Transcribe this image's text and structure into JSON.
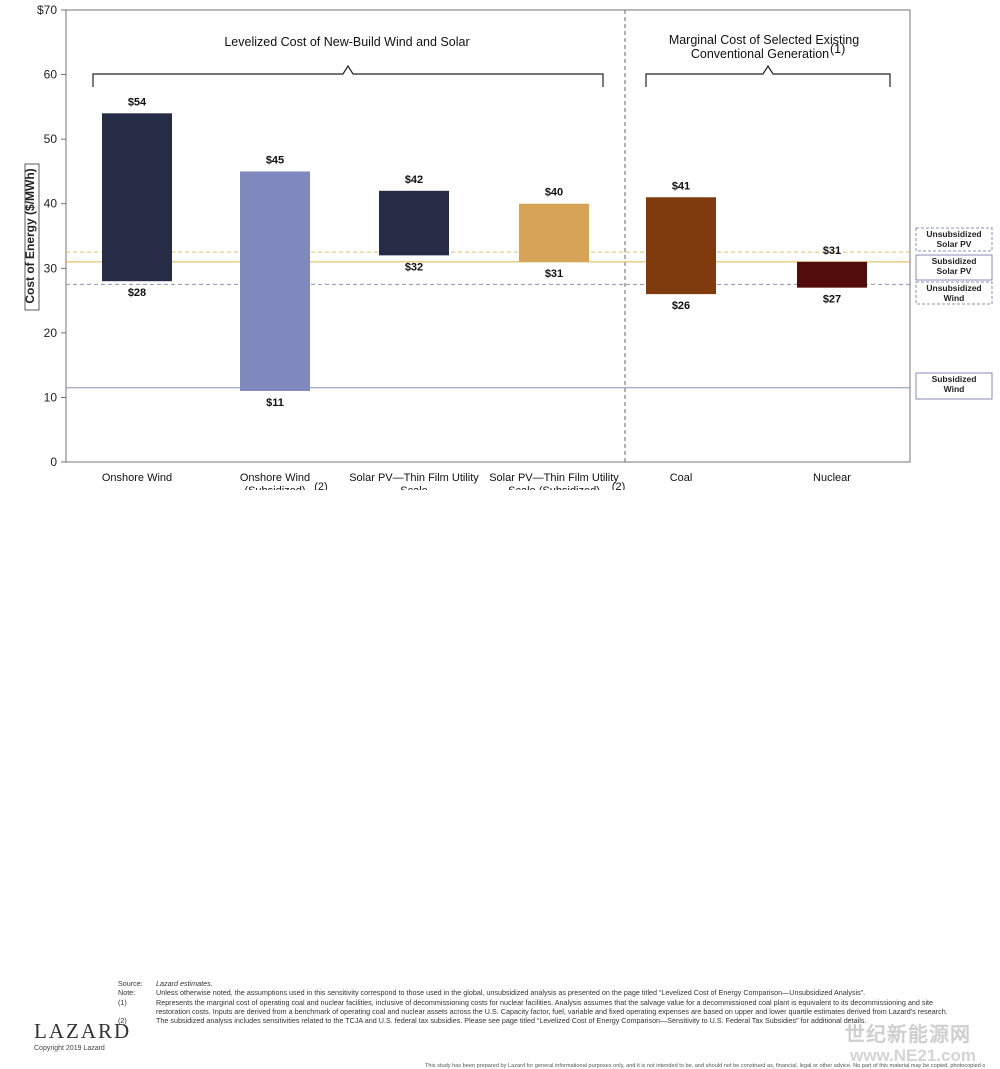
{
  "chart_data": {
    "type": "bar",
    "subtype": "floating-range",
    "ylabel": "Cost of Energy ($/MWh)",
    "ylim": [
      0,
      70
    ],
    "yticks": [
      "0",
      "10",
      "20",
      "30",
      "40",
      "50",
      "60",
      "$70"
    ],
    "grid": false,
    "categories": [
      "Onshore Wind",
      "Onshore Wind (Subsidized)",
      "Solar PV—Thin Film Utility Scale",
      "Solar PV—Thin Film Utility Scale (Subsidized)",
      "Coal",
      "Nuclear"
    ],
    "category_lines": [
      [
        "Onshore Wind"
      ],
      [
        "Onshore Wind",
        "(Subsidized)"
      ],
      [
        "Solar PV—Thin Film Utility",
        "Scale"
      ],
      [
        "Solar PV—Thin Film Utility",
        "Scale (Subsidized)"
      ],
      [
        "Coal"
      ],
      [
        "Nuclear"
      ]
    ],
    "category_sup": [
      "",
      "(2)",
      "",
      "(2)",
      "",
      ""
    ],
    "low": [
      28,
      11,
      32,
      31,
      26,
      27
    ],
    "high": [
      54,
      45,
      42,
      40,
      41,
      31
    ],
    "low_labels": [
      "$28",
      "$11",
      "$32",
      "$31",
      "$26",
      "$27"
    ],
    "high_labels": [
      "$54",
      "$45",
      "$42",
      "$40",
      "$41",
      "$31"
    ],
    "bar_colors": [
      "#262b46",
      "#7f89bd",
      "#262b46",
      "#d7a457",
      "#7f3b0e",
      "#520c0c"
    ],
    "groups": [
      {
        "title": "Levelized Cost of New-Build Wind and Solar",
        "from": 0,
        "to": 3
      },
      {
        "title_lines": [
          "Marginal Cost of Selected Existing",
          "Conventional Generation"
        ],
        "title_sup": "(1)",
        "from": 4,
        "to": 5
      }
    ],
    "reference_lines": [
      {
        "label": [
          "Unsubsidized",
          "Solar PV"
        ],
        "value": 32.5,
        "style": "dashed",
        "color": "#e0c16e"
      },
      {
        "label": [
          "Subsidized",
          "Solar PV"
        ],
        "value": 31,
        "style": "solid",
        "color": "#d7b64e"
      },
      {
        "label": [
          "Unsubsidized",
          "Wind"
        ],
        "value": 27.5,
        "style": "dashed",
        "color": "#8c92b8"
      },
      {
        "label": [
          "Subsidized",
          "Wind"
        ],
        "value": 11.5,
        "style": "solid",
        "color": "#8c92b8"
      }
    ]
  },
  "footer": {
    "source_key": "Source:",
    "source_text": "Lazard estimates.",
    "note_key": "Note:",
    "note_text": "Unless otherwise noted, the assumptions used in this sensitivity correspond to those used in the global, unsubsidized analysis as presented on the page titled “Levelized Cost of Energy Comparison—Unsubsidized Analysis”.",
    "fn1_key": "(1)",
    "fn1_text": "Represents the marginal cost of operating coal and nuclear facilities, inclusive of decommissioning costs for nuclear facilities. Analysis assumes that the salvage value for a decommissioned coal plant is equivalent to its decommissioning and site restoration costs. Inputs are derived from a benchmark of operating coal and nuclear assets across the U.S. Capacity factor, fuel, variable and fixed operating expenses are based on upper and lower quartile estimates derived from Lazard’s research.",
    "fn2_key": "(2)",
    "fn2_text": "The subsidized analysis includes sensitivities related to the TCJA and U.S. federal tax subsidies. Please see page titled “Levelized Cost of Energy Comparison—Sensitivity to U.S. Federal Tax Subsidies” for additional details.",
    "disclaimer": "This study has been prepared by Lazard for general informational purposes only, and it is not intended to be, and should not be construed as, financial, legal or other advice. No part of this material may be copied, photocopied or duplicated in any form by any means or redistributed without the prior consent of Lazard.",
    "logo": "LAZARD",
    "copyright": "Copyright 2019 Lazard",
    "watermark": "世纪新能源网",
    "watermark_url": "www.NE21.com"
  }
}
